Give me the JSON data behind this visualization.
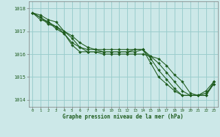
{
  "xlabel": "Graphe pression niveau de la mer (hPa)",
  "xlim": [
    -0.5,
    23.5
  ],
  "ylim": [
    1013.7,
    1018.3
  ],
  "yticks": [
    1014,
    1015,
    1016,
    1017,
    1018
  ],
  "xticks": [
    0,
    1,
    2,
    3,
    4,
    5,
    6,
    7,
    8,
    9,
    10,
    11,
    12,
    13,
    14,
    15,
    16,
    17,
    18,
    19,
    20,
    21,
    22,
    23
  ],
  "bg_color": "#cce8e8",
  "grid_color": "#99cccc",
  "line_color": "#1e5c1e",
  "series": [
    [
      1017.8,
      1017.7,
      1017.5,
      1017.4,
      1017.0,
      1016.7,
      1016.3,
      1016.1,
      1016.1,
      1016.0,
      1016.0,
      1016.0,
      1016.0,
      1016.0,
      1016.0,
      1015.9,
      1015.8,
      1015.5,
      1015.1,
      1014.8,
      1014.3,
      1014.2,
      1014.2,
      1014.8
    ],
    [
      1017.8,
      1017.6,
      1017.3,
      1017.2,
      1017.0,
      1016.8,
      1016.5,
      1016.3,
      1016.2,
      1016.1,
      1016.1,
      1016.1,
      1016.1,
      1016.1,
      1016.2,
      1015.9,
      1015.6,
      1015.2,
      1014.8,
      1014.4,
      1014.2,
      1014.2,
      1014.2,
      1014.7
    ],
    [
      1017.8,
      1017.5,
      1017.4,
      1017.1,
      1016.9,
      1016.5,
      1016.3,
      1016.2,
      1016.2,
      1016.2,
      1016.2,
      1016.2,
      1016.2,
      1016.2,
      1016.2,
      1015.8,
      1015.3,
      1014.9,
      1014.5,
      1014.2,
      1014.2,
      1014.2,
      1014.3,
      1014.7
    ],
    [
      1017.8,
      1017.6,
      1017.4,
      1017.2,
      1016.9,
      1016.4,
      1016.1,
      1016.1,
      1016.1,
      1016.1,
      1016.1,
      1016.1,
      1016.1,
      1016.2,
      1016.2,
      1015.6,
      1015.0,
      1014.7,
      1014.4,
      1014.2,
      1014.2,
      1014.2,
      1014.4,
      1014.8
    ]
  ]
}
